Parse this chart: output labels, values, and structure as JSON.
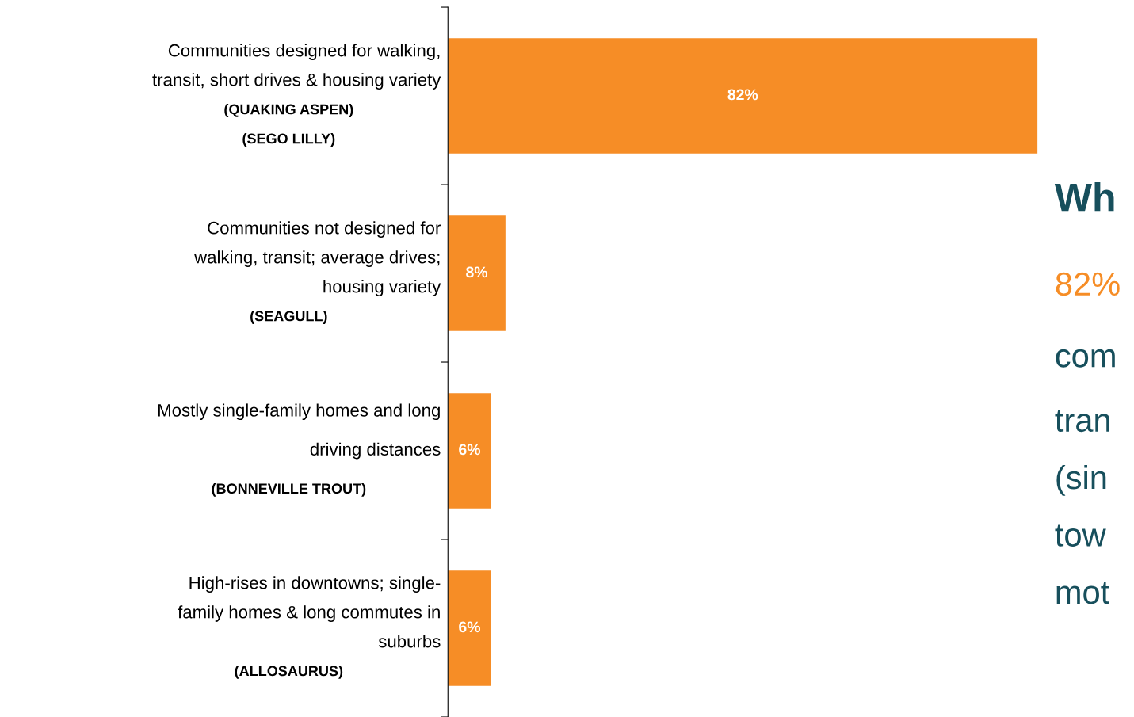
{
  "chart_data": {
    "type": "bar",
    "orientation": "horizontal",
    "categories": [
      "Communities designed for walking,\ntransit, short drives & housing variety\n(QUAKING ASPEN)\n(SEGO LILLY)",
      "Communities not designed for\nwalking, transit; average drives;\nhousing variety\n(SEAGULL)",
      "Mostly single-family homes and long\ndriving distances\n(BONNEVILLE TROUT)",
      "High-rises in downtowns; single-\nfamily homes & long commutes in\nsuburbs\n(ALLOSAURUS)"
    ],
    "values": [
      82,
      8,
      6,
      6
    ],
    "value_labels": [
      "82%",
      "8%",
      "6%",
      "6%"
    ],
    "color": "#f68d26",
    "annotations": [
      "Wh",
      "82%",
      "com",
      "tran",
      "(sin",
      "tow",
      "mot"
    ]
  }
}
